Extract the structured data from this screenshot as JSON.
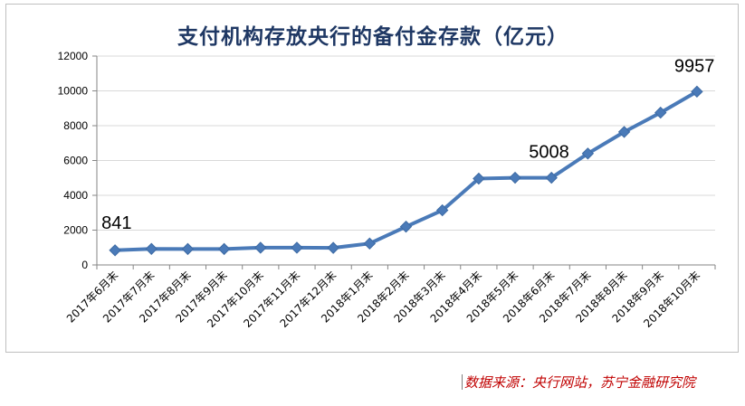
{
  "chart_data": {
    "type": "line",
    "title": "支付机构存放央行的备付金存款（亿元）",
    "xlabel": "",
    "ylabel": "",
    "categories": [
      "2017年6月末",
      "2017年7月末",
      "2017年8月末",
      "2017年9月末",
      "2017年10月末",
      "2017年11月末",
      "2017年12月末",
      "2018年1月末",
      "2018年2月末",
      "2018年3月末",
      "2018年4月末",
      "2018年5月末",
      "2018年6月末",
      "2018年7月末",
      "2018年8月末",
      "2018年9月末",
      "2018年10月末"
    ],
    "series": [
      {
        "values": [
          841,
          920,
          915,
          915,
          990,
          990,
          980,
          1230,
          2200,
          3140,
          4960,
          5010,
          5008,
          6400,
          7640,
          8750,
          9957
        ]
      }
    ],
    "data_labels": [
      {
        "index": 0,
        "text": "841"
      },
      {
        "index": 12,
        "text": "5008"
      },
      {
        "index": 16,
        "text": "9957"
      }
    ],
    "ylim": [
      0,
      12000
    ],
    "yticks": [
      0,
      2000,
      4000,
      6000,
      8000,
      10000,
      12000
    ],
    "ytick_labels": [
      "0",
      "2000",
      "4000",
      "6000",
      "8000",
      "10000",
      "12000"
    ],
    "grid": true,
    "legend": "none",
    "colors": {
      "line": "#4a7ab8",
      "marker": "#4a7ab8",
      "grid": "#d9d9d9",
      "title": "#1f3864"
    }
  },
  "source_note": "数据来源：央行网站，苏宁金融研究院"
}
